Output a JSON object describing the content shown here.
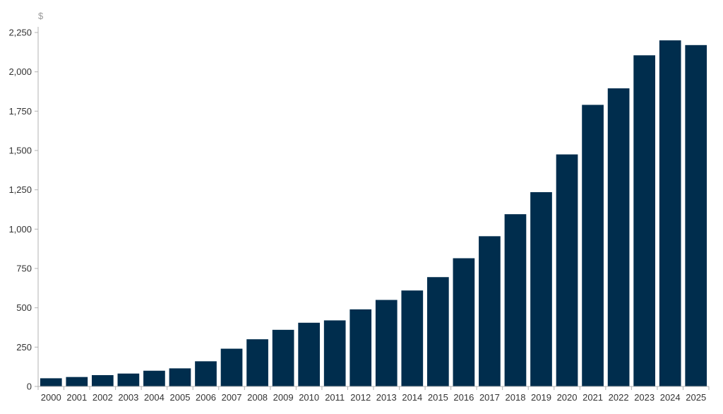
{
  "chart_data": {
    "type": "bar",
    "title": "",
    "xlabel": "",
    "ylabel": "$",
    "ylim": [
      0,
      2250
    ],
    "yticks": [
      0,
      250,
      500,
      750,
      1000,
      1250,
      1500,
      1750,
      2000,
      2250
    ],
    "ytick_labels": [
      "0",
      "250",
      "500",
      "750",
      "1,000",
      "1,250",
      "1,500",
      "1,750",
      "2,000",
      "2,250"
    ],
    "grid": false,
    "legend": "none",
    "bar_color": "#002d4d",
    "categories": [
      "2000",
      "2001",
      "2002",
      "2003",
      "2004",
      "2005",
      "2006",
      "2007",
      "2008",
      "2009",
      "2010",
      "2011",
      "2012",
      "2013",
      "2014",
      "2015",
      "2016",
      "2017",
      "2018",
      "2019",
      "2020",
      "2021",
      "2022",
      "2023",
      "2024",
      "2025"
    ],
    "values": [
      52,
      60,
      72,
      82,
      100,
      115,
      160,
      240,
      300,
      360,
      405,
      420,
      490,
      550,
      610,
      695,
      815,
      955,
      1095,
      1235,
      1475,
      1790,
      1895,
      2105,
      2200,
      2170
    ]
  }
}
